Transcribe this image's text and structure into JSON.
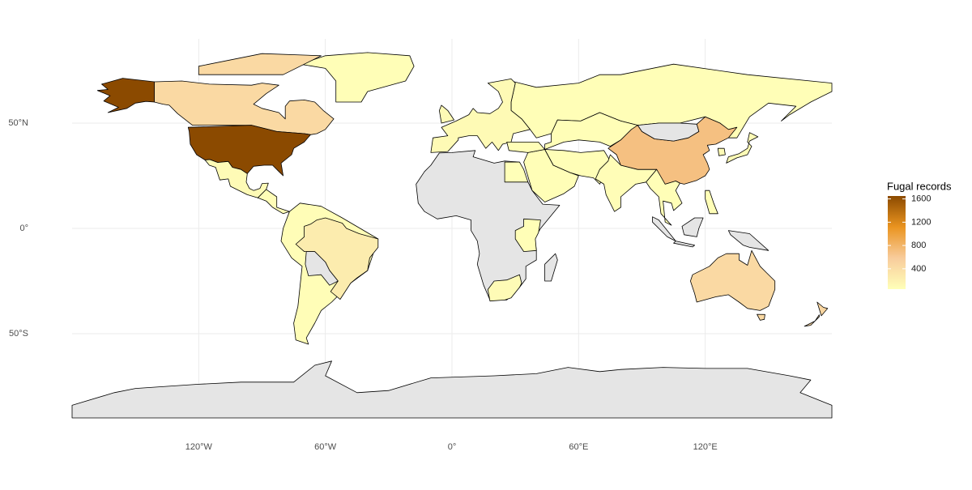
{
  "chart_data": {
    "type": "map",
    "xlim": [
      -180,
      180
    ],
    "ylim": [
      -90,
      90
    ],
    "xticks": [
      {
        "value": -120,
        "label": "120°W"
      },
      {
        "value": -60,
        "label": "60°W"
      },
      {
        "value": 0,
        "label": "0°"
      },
      {
        "value": 60,
        "label": "60°E"
      },
      {
        "value": 120,
        "label": "120°E"
      }
    ],
    "yticks": [
      {
        "value": 50,
        "label": "50°N"
      },
      {
        "value": 0,
        "label": "0°"
      },
      {
        "value": -50,
        "label": "50°S"
      }
    ],
    "grid": true,
    "na_color": "#e5e5e5",
    "legend": {
      "title": "Fugal records",
      "ticks": [
        400,
        800,
        1200,
        1600
      ],
      "range": [
        50,
        1650
      ],
      "colors": [
        "#ffffb8",
        "#f8cc9c",
        "#ea9420",
        "#8b4a00"
      ]
    },
    "regions": [
      {
        "value": 1650
      },
      {
        "value": 450
      },
      {
        "value": 700
      },
      {
        "value": 450
      },
      {
        "value": 250
      },
      {
        "value": 480
      },
      {
        "value": 100
      },
      {
        "value": 60
      },
      {
        "value": 90
      },
      {
        "value": 60
      },
      {
        "value": 70
      },
      {
        "value": 70
      },
      {
        "value": 90
      },
      {
        "value": 60
      },
      {
        "value": 60
      },
      {
        "value": 60
      },
      {
        "value": 50
      },
      {
        "value": 90
      },
      {
        "value": 60
      }
    ]
  }
}
